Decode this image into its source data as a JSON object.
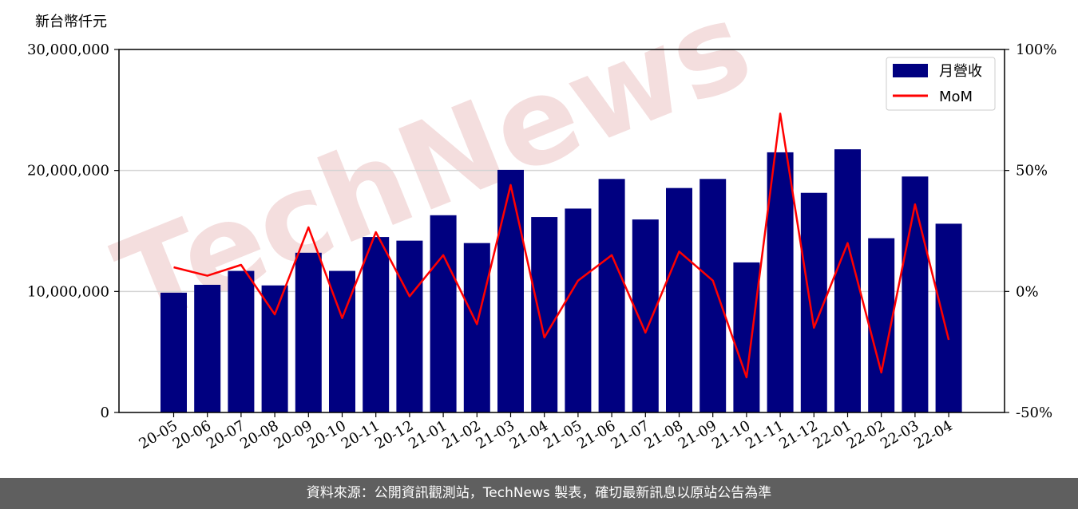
{
  "chart_data": {
    "type": "bar",
    "categories": [
      "20-05",
      "20-06",
      "20-07",
      "20-08",
      "20-09",
      "20-10",
      "20-11",
      "20-12",
      "21-01",
      "21-02",
      "21-03",
      "21-04",
      "21-05",
      "21-06",
      "21-07",
      "21-08",
      "21-09",
      "21-10",
      "21-11",
      "21-12",
      "22-01",
      "22-02",
      "22-03",
      "22-04"
    ],
    "series": [
      {
        "name": "月營收",
        "axis": "left",
        "kind": "bar",
        "color": "#000080",
        "values": [
          9900000,
          10550000,
          11700000,
          10500000,
          13200000,
          11700000,
          14500000,
          14200000,
          16300000,
          14000000,
          20050000,
          16150000,
          16850000,
          19300000,
          15950000,
          18550000,
          19300000,
          12400000,
          21500000,
          18150000,
          21750000,
          14400000,
          19500000,
          15600000
        ]
      },
      {
        "name": "MoM",
        "axis": "right",
        "kind": "line",
        "color": "#ff0000",
        "values": [
          10,
          6.5,
          11,
          -9.5,
          26.5,
          -11,
          24.5,
          -2,
          15,
          -13.5,
          44,
          -19,
          4.5,
          15,
          -17,
          16.5,
          4.5,
          -35.5,
          73.5,
          -15,
          20,
          -33.5,
          36,
          -20
        ]
      }
    ],
    "y_left": {
      "unit_label": "新台幣仟元",
      "ylim": [
        0,
        30000000
      ],
      "ticks": [
        "0",
        "10,000,000",
        "20,000,000",
        "30,000,000"
      ],
      "tick_values": [
        0,
        10000000,
        20000000,
        30000000
      ]
    },
    "y_right": {
      "ylim": [
        -50,
        100
      ],
      "ticks": [
        "-50%",
        "0%",
        "50%",
        "100%"
      ],
      "tick_values": [
        -50,
        0,
        50,
        100
      ]
    },
    "grid": "horizontal",
    "legend": "top-right"
  },
  "watermark": "TechNews",
  "footer": {
    "source_text": "資料來源：公開資訊觀測站，TechNews 製表，確切最新訊息以原站公告為準"
  }
}
